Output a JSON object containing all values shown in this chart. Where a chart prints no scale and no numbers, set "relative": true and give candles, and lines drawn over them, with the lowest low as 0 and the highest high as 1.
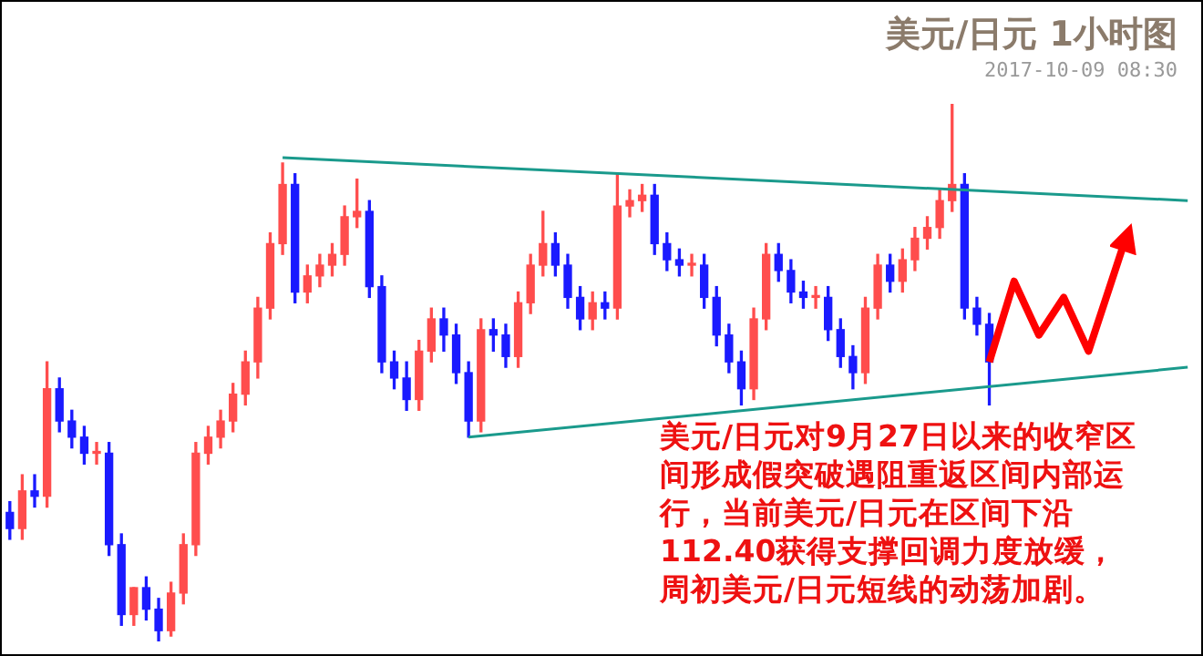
{
  "chart_data": {
    "type": "candlestick",
    "title": "美元/日元 1小时图",
    "subtitle": "2017-10-09 08:30",
    "annotations": [
      "美元/日元对9月27日以来的收窄区间形成假突破遇阻重返区间内部运行，当前美元/日元在区间下沿112.40获得支撑回调力度放缓，周初美元/日元短线的动荡加剧。"
    ],
    "relative": true,
    "categories": [
      null,
      null,
      null,
      null,
      null,
      null,
      null,
      null,
      null,
      null,
      null,
      null,
      null,
      null,
      null,
      null,
      null,
      null,
      null,
      null,
      null,
      null,
      null,
      null,
      null,
      null,
      null,
      null,
      null,
      null,
      null,
      null,
      null,
      null,
      null,
      null,
      null,
      null,
      null,
      null,
      null,
      null,
      null,
      null,
      null,
      null,
      null,
      null,
      null,
      null,
      null,
      null,
      null,
      null,
      null,
      null,
      null,
      null,
      null,
      null,
      null,
      null,
      null,
      null,
      null,
      null,
      null,
      null,
      null,
      null,
      null,
      null,
      null,
      null,
      null,
      null,
      null,
      null,
      null,
      null,
      null,
      null,
      null,
      null,
      null,
      null,
      null,
      null,
      null,
      null,
      null,
      null,
      null,
      null,
      null,
      null
    ],
    "ohlc": [
      [
        0.24,
        0.26,
        0.19,
        0.21
      ],
      [
        0.21,
        0.31,
        0.19,
        0.28
      ],
      [
        0.28,
        0.31,
        0.25,
        0.27
      ],
      [
        0.27,
        0.52,
        0.25,
        0.47
      ],
      [
        0.47,
        0.49,
        0.39,
        0.41
      ],
      [
        0.41,
        0.43,
        0.36,
        0.38
      ],
      [
        0.38,
        0.4,
        0.33,
        0.35
      ],
      [
        0.35,
        0.37,
        0.33,
        0.35
      ],
      [
        0.35,
        0.37,
        0.16,
        0.18
      ],
      [
        0.18,
        0.2,
        0.03,
        0.05
      ],
      [
        0.05,
        0.1,
        0.03,
        0.1
      ],
      [
        0.1,
        0.12,
        0.04,
        0.06
      ],
      [
        0.06,
        0.08,
        0,
        0.02
      ],
      [
        0.02,
        0.11,
        0.01,
        0.09
      ],
      [
        0.09,
        0.2,
        0.07,
        0.18
      ],
      [
        0.18,
        0.37,
        0.16,
        0.35
      ],
      [
        0.35,
        0.4,
        0.33,
        0.38
      ],
      [
        0.38,
        0.43,
        0.36,
        0.41
      ],
      [
        0.41,
        0.48,
        0.39,
        0.46
      ],
      [
        0.46,
        0.54,
        0.44,
        0.52
      ],
      [
        0.52,
        0.64,
        0.49,
        0.62
      ],
      [
        0.62,
        0.76,
        0.6,
        0.74
      ],
      [
        0.74,
        0.89,
        0.72,
        0.85
      ],
      [
        0.85,
        0.87,
        0.63,
        0.65
      ],
      [
        0.65,
        0.7,
        0.63,
        0.68
      ],
      [
        0.68,
        0.72,
        0.66,
        0.7
      ],
      [
        0.7,
        0.74,
        0.68,
        0.72
      ],
      [
        0.72,
        0.81,
        0.7,
        0.79
      ],
      [
        0.79,
        0.86,
        0.77,
        0.8
      ],
      [
        0.8,
        0.82,
        0.64,
        0.66
      ],
      [
        0.66,
        0.68,
        0.5,
        0.52
      ],
      [
        0.52,
        0.54,
        0.47,
        0.49
      ],
      [
        0.49,
        0.52,
        0.43,
        0.45
      ],
      [
        0.45,
        0.56,
        0.43,
        0.54
      ],
      [
        0.54,
        0.62,
        0.52,
        0.6
      ],
      [
        0.6,
        0.62,
        0.54,
        0.57
      ],
      [
        0.57,
        0.59,
        0.48,
        0.5
      ],
      [
        0.5,
        0.52,
        0.38,
        0.41
      ],
      [
        0.41,
        0.6,
        0.39,
        0.58
      ],
      [
        0.58,
        0.6,
        0.54,
        0.57
      ],
      [
        0.57,
        0.59,
        0.51,
        0.53
      ],
      [
        0.53,
        0.65,
        0.51,
        0.63
      ],
      [
        0.63,
        0.72,
        0.61,
        0.7
      ],
      [
        0.7,
        0.8,
        0.68,
        0.74
      ],
      [
        0.74,
        0.76,
        0.68,
        0.7
      ],
      [
        0.7,
        0.72,
        0.62,
        0.64
      ],
      [
        0.64,
        0.66,
        0.58,
        0.6
      ],
      [
        0.6,
        0.65,
        0.58,
        0.63
      ],
      [
        0.63,
        0.65,
        0.6,
        0.62
      ],
      [
        0.62,
        0.87,
        0.6,
        0.81
      ],
      [
        0.81,
        0.84,
        0.79,
        0.82
      ],
      [
        0.82,
        0.85,
        0.8,
        0.83
      ],
      [
        0.83,
        0.85,
        0.72,
        0.74
      ],
      [
        0.74,
        0.76,
        0.69,
        0.71
      ],
      [
        0.71,
        0.73,
        0.68,
        0.7
      ],
      [
        0.7,
        0.72,
        0.68,
        0.7
      ],
      [
        0.7,
        0.72,
        0.62,
        0.64
      ],
      [
        0.64,
        0.66,
        0.55,
        0.57
      ],
      [
        0.57,
        0.59,
        0.5,
        0.52
      ],
      [
        0.52,
        0.54,
        0.44,
        0.47
      ],
      [
        0.47,
        0.62,
        0.45,
        0.6
      ],
      [
        0.6,
        0.74,
        0.58,
        0.72
      ],
      [
        0.72,
        0.74,
        0.67,
        0.69
      ],
      [
        0.69,
        0.71,
        0.63,
        0.65
      ],
      [
        0.65,
        0.67,
        0.62,
        0.64
      ],
      [
        0.64,
        0.66,
        0.62,
        0.64
      ],
      [
        0.64,
        0.66,
        0.56,
        0.58
      ],
      [
        0.58,
        0.6,
        0.51,
        0.53
      ],
      [
        0.53,
        0.55,
        0.47,
        0.5
      ],
      [
        0.5,
        0.64,
        0.48,
        0.62
      ],
      [
        0.62,
        0.72,
        0.6,
        0.7
      ],
      [
        0.7,
        0.72,
        0.65,
        0.67
      ],
      [
        0.67,
        0.73,
        0.65,
        0.71
      ],
      [
        0.71,
        0.77,
        0.69,
        0.75
      ],
      [
        0.75,
        0.79,
        0.73,
        0.77
      ],
      [
        0.77,
        0.84,
        0.75,
        0.82
      ],
      [
        0.82,
        1,
        0.8,
        0.85
      ],
      [
        0.85,
        0.87,
        0.6,
        0.62
      ],
      [
        0.62,
        0.64,
        0.57,
        0.59
      ],
      [
        0.59,
        0.61,
        0.44,
        0.52
      ],
      null,
      null,
      null,
      null,
      null,
      null,
      null,
      null,
      null,
      null,
      null,
      null,
      null,
      null,
      null,
      null
    ],
    "colors": [
      "#1a1aff",
      "#ff4d4d",
      "#1a1aff",
      "#ff4d4d",
      "#1a1aff",
      "#1a1aff",
      "#1a1aff",
      "#ff4d4d",
      "#1a1aff",
      "#1a1aff",
      "#ff4d4d",
      "#1a1aff",
      "#1a1aff",
      "#ff4d4d",
      "#ff4d4d",
      "#ff4d4d",
      "#ff4d4d",
      "#ff4d4d",
      "#ff4d4d",
      "#ff4d4d",
      "#ff4d4d",
      "#ff4d4d",
      "#ff4d4d",
      "#1a1aff",
      "#ff4d4d",
      "#ff4d4d",
      "#ff4d4d",
      "#ff4d4d",
      "#ff4d4d",
      "#1a1aff",
      "#1a1aff",
      "#1a1aff",
      "#1a1aff",
      "#ff4d4d",
      "#ff4d4d",
      "#1a1aff",
      "#1a1aff",
      "#1a1aff",
      "#ff4d4d",
      "#1a1aff",
      "#1a1aff",
      "#ff4d4d",
      "#ff4d4d",
      "#ff4d4d",
      "#1a1aff",
      "#1a1aff",
      "#1a1aff",
      "#ff4d4d",
      "#1a1aff",
      "#ff4d4d",
      "#ff4d4d",
      "#ff4d4d",
      "#1a1aff",
      "#1a1aff",
      "#1a1aff",
      "#ff4d4d",
      "#1a1aff",
      "#1a1aff",
      "#1a1aff",
      "#1a1aff",
      "#ff4d4d",
      "#ff4d4d",
      "#1a1aff",
      "#1a1aff",
      "#1a1aff",
      "#ff4d4d",
      "#1a1aff",
      "#1a1aff",
      "#1a1aff",
      "#ff4d4d",
      "#ff4d4d",
      "#1a1aff",
      "#ff4d4d",
      "#ff4d4d",
      "#ff4d4d",
      "#ff4d4d",
      "#ff4d4d",
      "#1a1aff",
      "#1a1aff",
      "#1a1aff",
      null,
      null,
      null,
      null,
      null,
      null,
      null,
      null,
      null,
      null,
      null,
      null,
      null,
      null,
      null,
      null
    ],
    "series": [
      {
        "type": "line",
        "color": "#1a9a8c",
        "values": [
          null,
          null,
          null,
          null,
          null,
          null,
          null,
          null,
          null,
          null,
          null,
          null,
          null,
          null,
          null,
          null,
          null,
          null,
          null,
          null,
          null,
          null,
          0.9,
          null,
          null,
          null,
          null,
          null,
          null,
          null,
          null,
          null,
          null,
          null,
          null,
          null,
          null,
          null,
          null,
          null,
          null,
          null,
          null,
          null,
          null,
          null,
          null,
          null,
          null,
          null,
          null,
          null,
          null,
          null,
          null,
          null,
          null,
          null,
          null,
          null,
          null,
          null,
          null,
          null,
          null,
          null,
          null,
          null,
          null,
          null,
          null,
          null,
          null,
          null,
          null,
          null,
          null,
          null,
          null,
          null,
          null,
          null,
          null,
          null,
          null,
          null,
          null,
          null,
          null,
          null,
          null,
          null,
          null,
          null,
          null,
          0.82
        ]
      },
      {
        "type": "line",
        "color": "#1a9a8c",
        "values": [
          null,
          null,
          null,
          null,
          null,
          null,
          null,
          null,
          null,
          null,
          null,
          null,
          null,
          null,
          null,
          null,
          null,
          null,
          null,
          null,
          null,
          null,
          null,
          null,
          null,
          null,
          null,
          null,
          null,
          null,
          null,
          null,
          null,
          null,
          null,
          null,
          null,
          0.38,
          null,
          null,
          null,
          null,
          null,
          null,
          null,
          null,
          null,
          null,
          null,
          null,
          null,
          null,
          null,
          null,
          null,
          null,
          null,
          null,
          null,
          null,
          null,
          null,
          null,
          null,
          null,
          null,
          null,
          null,
          null,
          null,
          null,
          null,
          null,
          null,
          null,
          null,
          null,
          null,
          null,
          null,
          null,
          null,
          null,
          null,
          null,
          null,
          null,
          null,
          null,
          null,
          null,
          null,
          null,
          null,
          null,
          0.51
        ]
      },
      {
        "type": "line",
        "color": "#ff0000",
        "values": [
          null,
          null,
          null,
          null,
          null,
          null,
          null,
          null,
          null,
          null,
          null,
          null,
          null,
          null,
          null,
          null,
          null,
          null,
          null,
          null,
          null,
          null,
          null,
          null,
          null,
          null,
          null,
          null,
          null,
          null,
          null,
          null,
          null,
          null,
          null,
          null,
          null,
          null,
          null,
          null,
          null,
          null,
          null,
          null,
          null,
          null,
          null,
          null,
          null,
          null,
          null,
          null,
          null,
          null,
          null,
          null,
          null,
          null,
          null,
          null,
          null,
          null,
          null,
          null,
          null,
          null,
          null,
          null,
          null,
          null,
          null,
          null,
          null,
          null,
          null,
          null,
          null,
          null,
          null,
          0.52,
          null,
          0.67,
          null,
          0.57,
          null,
          0.64,
          null,
          0.54,
          null,
          null,
          0.75,
          null,
          null,
          null,
          null,
          null
        ]
      }
    ]
  }
}
